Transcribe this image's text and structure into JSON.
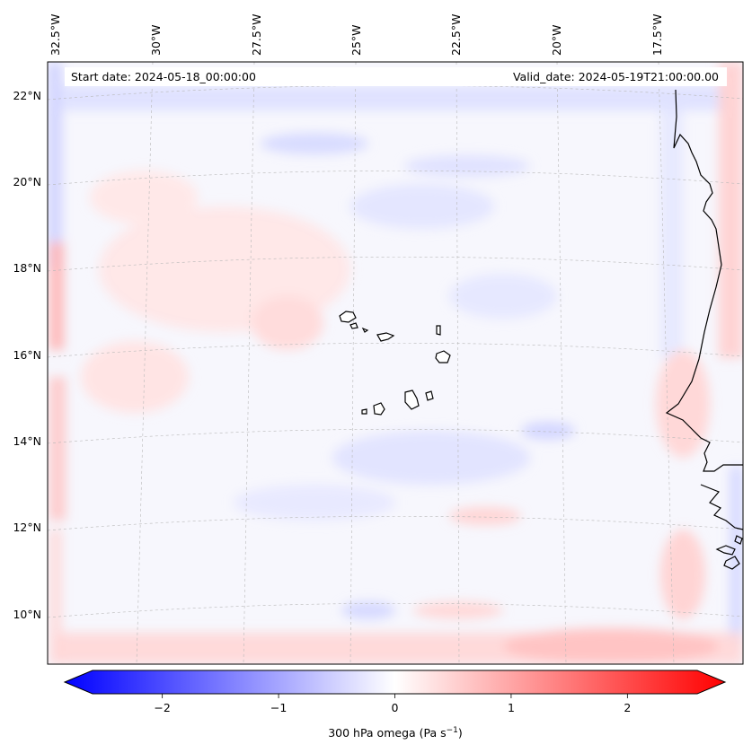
{
  "header": {
    "start_date": "Start date: 2024-05-18_00:00:00",
    "valid_date": "Valid_date: 2024-05-19T21:00:00.00"
  },
  "map": {
    "projection": "conic (tilted graticule)",
    "lon_labels": [
      "32.5°W",
      "30°W",
      "27.5°W",
      "25°W",
      "22.5°W",
      "20°W",
      "17.5°W"
    ],
    "lat_labels": [
      "22°N",
      "20°N",
      "18°N",
      "16°N",
      "14°N",
      "12°N",
      "10°N"
    ],
    "gridlines": true,
    "features": [
      "Cape Verde islands",
      "West African coastline (Senegal, Gambia, Guinea-Bissau)"
    ]
  },
  "colorbar": {
    "ticks": [
      "−2",
      "−1",
      "0",
      "1",
      "2"
    ],
    "tick_values": [
      -2,
      -1,
      0,
      1,
      2
    ],
    "range": [
      -2.6,
      2.6
    ],
    "extend": "both",
    "colormap": "bwr",
    "label": "300 hPa omega (Pa s",
    "label_sup": "−1",
    "label_end": ")"
  },
  "colors": {
    "negative": "#0000ff",
    "zero": "#ffffff",
    "positive": "#ff0000",
    "coast": "#000000",
    "grid": "#bbbbbb"
  }
}
